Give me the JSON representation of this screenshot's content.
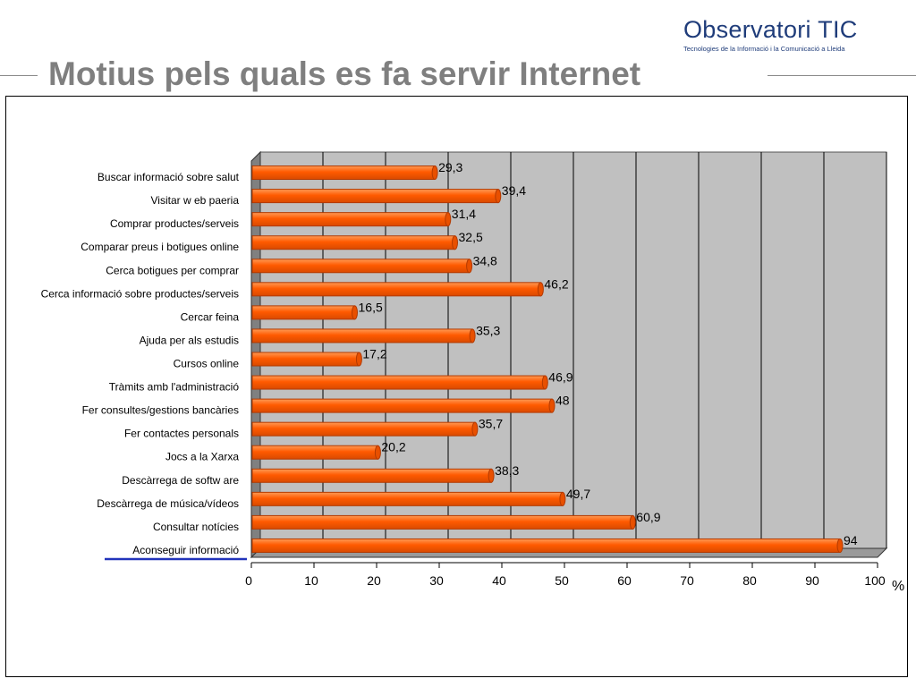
{
  "header": {
    "title": "Motius pels quals es fa servir Internet",
    "logo_title": "Observatori TIC",
    "logo_subtitle": "Tecnologies de la Informació i la Comunicació a Lleida"
  },
  "colors": {
    "bar": "#ff5a00",
    "bar_dark": "#b33a00",
    "plot_bg": "#c0c0c0",
    "title": "#7f7f7f",
    "logo": "#1f3c7a",
    "highlight_line": "#2233bb"
  },
  "chart_data": {
    "type": "bar",
    "orientation": "horizontal",
    "title": "",
    "xlabel": "%",
    "ylabel": "",
    "xlim": [
      0,
      100
    ],
    "x_ticks": [
      0,
      10,
      20,
      30,
      40,
      50,
      60,
      70,
      80,
      90,
      100
    ],
    "grid": true,
    "categories": [
      "Buscar informació sobre salut",
      "Visitar w eb paeria",
      "Comprar productes/serveis",
      "Comparar preus i botigues online",
      "Cerca botigues per comprar",
      "Cerca informació sobre productes/serveis",
      "Cercar feina",
      "Ajuda per als estudis",
      "Cursos online",
      "Tràmits amb l'administració",
      "Fer consultes/gestions bancàries",
      "Fer contactes personals",
      "Jocs a la Xarxa",
      "Descàrrega de softw are",
      "Descàrrega de música/vídeos",
      "Consultar notícies",
      "Aconseguir informació"
    ],
    "values": [
      29.3,
      39.4,
      31.4,
      32.5,
      34.8,
      46.2,
      16.5,
      35.3,
      17.2,
      46.9,
      48,
      35.7,
      20.2,
      38.3,
      49.7,
      60.9,
      94
    ],
    "value_labels": [
      "29,3",
      "39,4",
      "31,4",
      "32,5",
      "34,8",
      "46,2",
      "16,5",
      "35,3",
      "17,2",
      "46,9",
      "48",
      "35,7",
      "20,2",
      "38,3",
      "49,7",
      "60,9",
      "94"
    ]
  }
}
